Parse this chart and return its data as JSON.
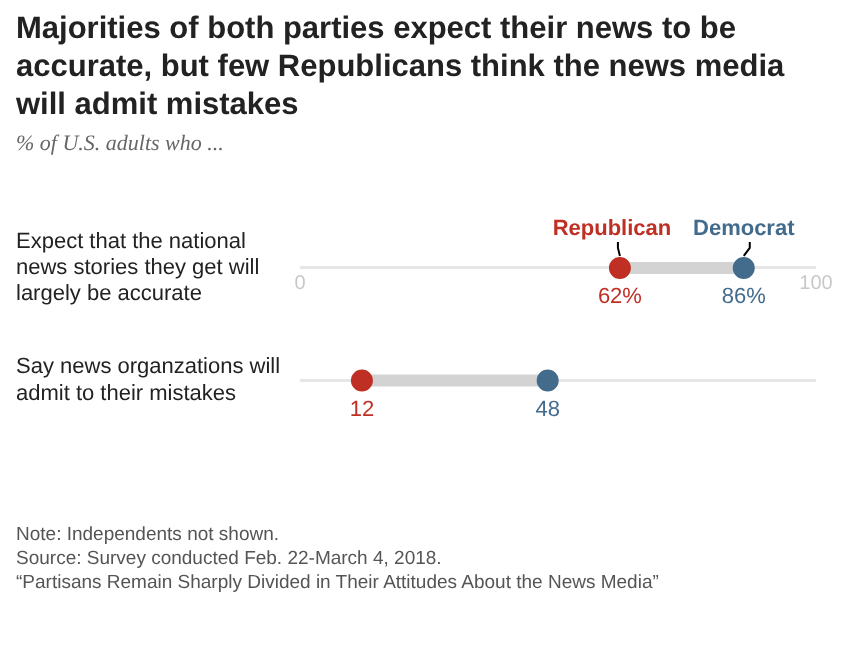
{
  "chart_data": {
    "type": "scatter",
    "title": "Majorities of both parties expect their news to be accurate, but few Republicans think the news media will admit mistakes",
    "subtitle": "% of U.S. adults who ...",
    "categories": [
      "Expect that the national news stories they get will largely be accurate",
      "Say news organzations will admit to their mistakes"
    ],
    "series": [
      {
        "name": "Republican",
        "color": "#bf2f24",
        "values": [
          62,
          12
        ],
        "value_labels": [
          "62%",
          "12"
        ]
      },
      {
        "name": "Democrat",
        "color": "#436b8c",
        "values": [
          86,
          48
        ],
        "value_labels": [
          "86%",
          "48"
        ]
      }
    ],
    "orientation": "horizontal",
    "xlim": [
      0,
      100
    ],
    "xticks": [
      0,
      100
    ],
    "grid": "y",
    "legend": false,
    "marker": "circle",
    "annotations": [
      "Note: Independents not shown.",
      "Source: Survey conducted Feb. 22-March 4, 2018.",
      "“Partisans Remain Sharply Divided in Their Attitudes About the News Media”"
    ]
  }
}
